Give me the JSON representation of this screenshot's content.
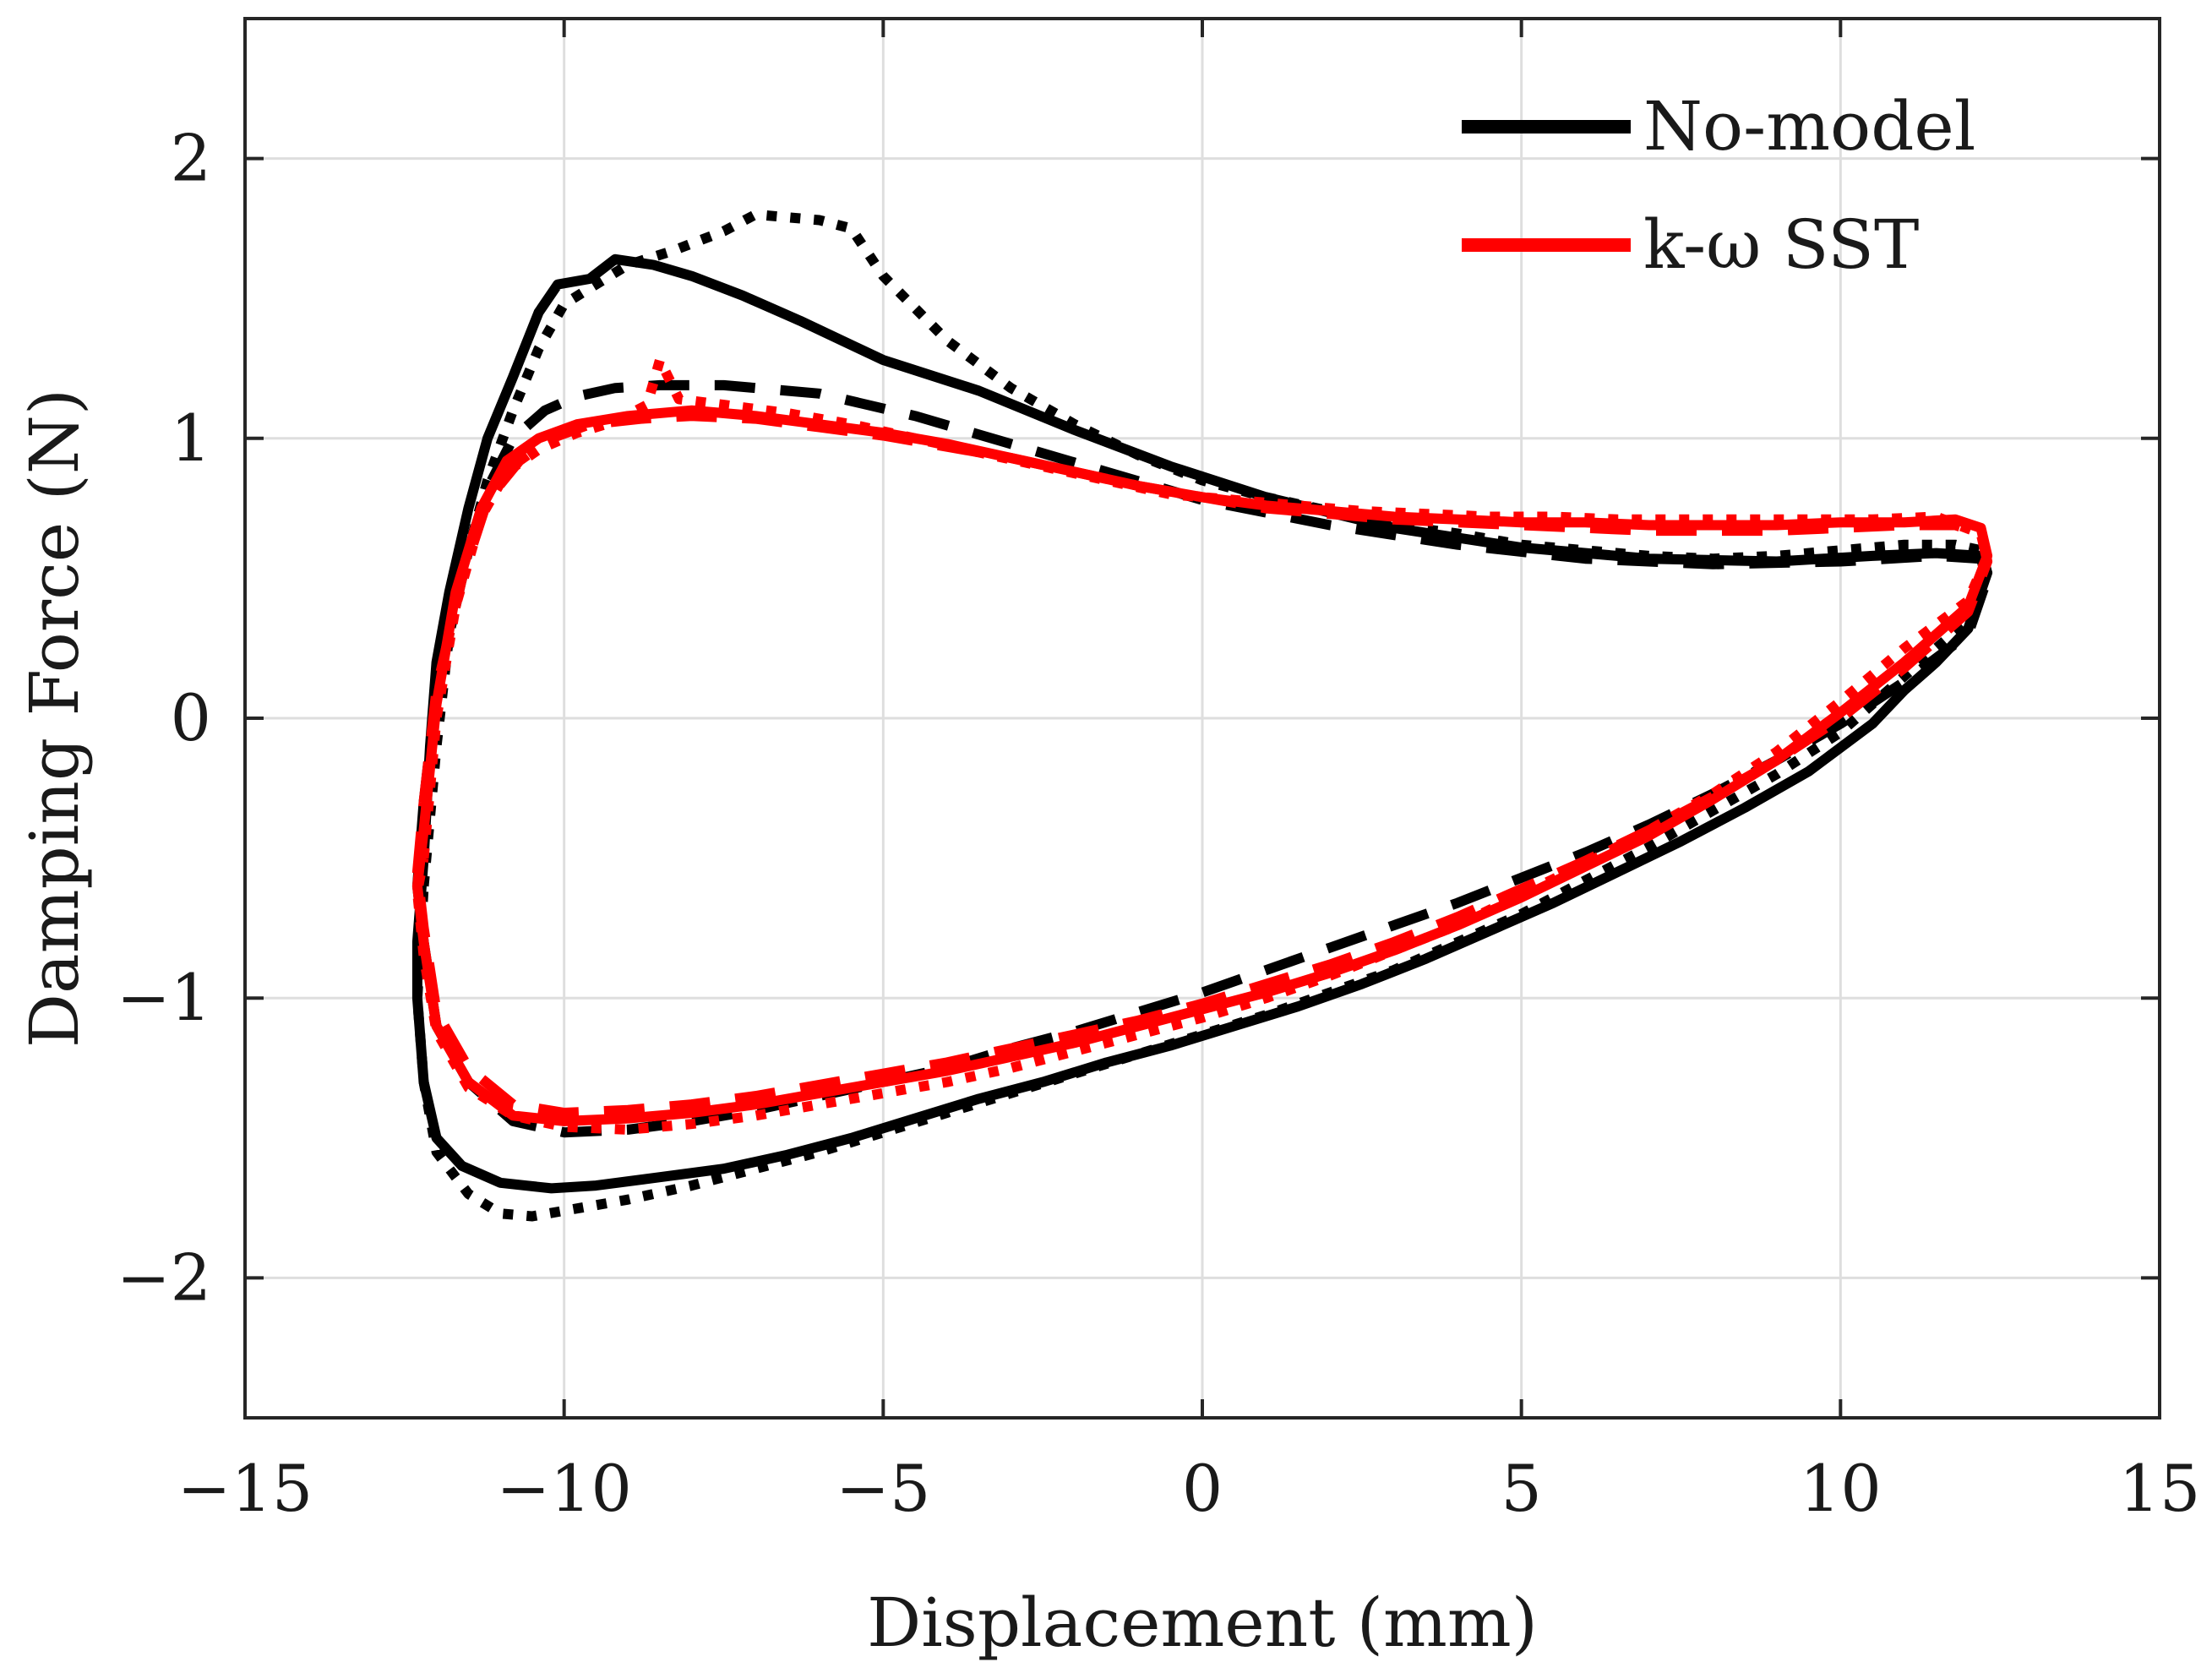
{
  "chart_data": {
    "type": "line",
    "title": "",
    "xlabel": "Displacement (mm)",
    "ylabel": "Damping Force (N)",
    "xlim": [
      -15,
      15
    ],
    "ylim": [
      -2.5,
      2.5
    ],
    "grid": true,
    "legend_position": "top-right",
    "x_ticks": [
      -15,
      -10,
      -5,
      0,
      5,
      10,
      15
    ],
    "y_ticks": [
      -2,
      -1,
      0,
      1,
      2
    ],
    "x_tick_labels": [
      "−15",
      "−10",
      "−5",
      "0",
      "5",
      "10",
      "15"
    ],
    "y_tick_labels": [
      "−2",
      "−1",
      "0",
      "1",
      "2"
    ],
    "legend": [
      {
        "label": "No-model",
        "color": "#000000"
      },
      {
        "label": "k-ω SST",
        "color": "#ff0000"
      }
    ],
    "series": [
      {
        "name": "No-model (solid)",
        "color": "#000000",
        "style": "solid",
        "x": [
          -12.2,
          -12.1,
          -12.0,
          -11.8,
          -11.5,
          -11.2,
          -10.8,
          -10.4,
          -10.1,
          -9.6,
          -9.2,
          -8.6,
          -8.0,
          -7.2,
          -6.3,
          -5.0,
          -3.5,
          -2.0,
          -0.5,
          1.0,
          3.0,
          5.0,
          7.0,
          9.0,
          10.5,
          11.5,
          12.2,
          12.3,
          12.0,
          11.5,
          11.0,
          10.5,
          9.5,
          8.5,
          7.5,
          6.5,
          5.5,
          4.5,
          3.5,
          2.5,
          1.5,
          0.5,
          -0.5,
          -1.5,
          -2.5,
          -3.5,
          -4.5,
          -5.5,
          -6.5,
          -7.5,
          -8.5,
          -9.5,
          -10.2,
          -11.0,
          -11.6,
          -12.0,
          -12.2,
          -12.3,
          -12.3,
          -12.25,
          -12.2
        ],
        "y": [
          -0.5,
          -0.1,
          0.2,
          0.45,
          0.75,
          1.0,
          1.22,
          1.45,
          1.55,
          1.57,
          1.64,
          1.62,
          1.58,
          1.51,
          1.42,
          1.28,
          1.17,
          1.03,
          0.9,
          0.79,
          0.68,
          0.61,
          0.57,
          0.56,
          0.58,
          0.59,
          0.58,
          0.52,
          0.32,
          0.2,
          0.1,
          -0.02,
          -0.19,
          -0.32,
          -0.44,
          -0.55,
          -0.66,
          -0.76,
          -0.86,
          -0.95,
          -1.03,
          -1.1,
          -1.17,
          -1.23,
          -1.3,
          -1.36,
          -1.43,
          -1.5,
          -1.56,
          -1.61,
          -1.64,
          -1.67,
          -1.68,
          -1.66,
          -1.6,
          -1.5,
          -1.3,
          -1.0,
          -0.8,
          -0.65,
          -0.5
        ]
      },
      {
        "name": "No-model (dashed)",
        "color": "#000000",
        "style": "dashed",
        "x": [
          -12.2,
          -12.0,
          -11.6,
          -11.2,
          -10.8,
          -10.3,
          -9.8,
          -9.2,
          -8.5,
          -7.5,
          -6.0,
          -4.5,
          -3.0,
          -1.5,
          0.0,
          2.0,
          4.0,
          6.0,
          8.0,
          10.0,
          11.5,
          12.2,
          12.3,
          12.0,
          11.0,
          10.0,
          9.0,
          8.0,
          7.0,
          6.0,
          5.0,
          4.0,
          3.0,
          2.0,
          1.0,
          0.0,
          -1.0,
          -2.0,
          -3.0,
          -4.0,
          -5.0,
          -6.0,
          -7.0,
          -8.0,
          -9.0,
          -10.0,
          -10.8,
          -11.5,
          -12.0,
          -12.2,
          -12.3,
          -12.2
        ],
        "y": [
          -0.3,
          0.1,
          0.5,
          0.82,
          1.0,
          1.1,
          1.15,
          1.18,
          1.19,
          1.19,
          1.16,
          1.08,
          0.98,
          0.88,
          0.78,
          0.69,
          0.62,
          0.57,
          0.55,
          0.56,
          0.58,
          0.57,
          0.5,
          0.3,
          0.13,
          -0.02,
          -0.15,
          -0.27,
          -0.38,
          -0.48,
          -0.57,
          -0.66,
          -0.74,
          -0.82,
          -0.9,
          -0.98,
          -1.05,
          -1.12,
          -1.18,
          -1.25,
          -1.3,
          -1.35,
          -1.4,
          -1.44,
          -1.47,
          -1.48,
          -1.44,
          -1.3,
          -1.1,
          -0.8,
          -0.6,
          -0.3
        ]
      },
      {
        "name": "No-model (dotted)",
        "color": "#000000",
        "style": "dotted",
        "x": [
          -12.2,
          -12.0,
          -11.8,
          -11.5,
          -11.2,
          -10.8,
          -10.4,
          -10.0,
          -9.5,
          -9.0,
          -8.3,
          -7.5,
          -7.0,
          -6.5,
          -6.0,
          -5.5,
          -5.0,
          -4.0,
          -3.0,
          -2.0,
          -1.0,
          0.0,
          1.0,
          2.0,
          3.0,
          4.0,
          5.0,
          6.0,
          7.0,
          8.0,
          9.0,
          10.0,
          11.0,
          11.8,
          12.2,
          12.3,
          12.0,
          11.5,
          11.0,
          10.5,
          10.0,
          9.0,
          8.0,
          7.0,
          6.0,
          5.0,
          4.0,
          3.0,
          2.0,
          1.0,
          0.0,
          -1.0,
          -2.0,
          -3.0,
          -4.0,
          -5.0,
          -6.0,
          -7.0,
          -8.0,
          -9.0,
          -10.0,
          -10.5,
          -11.0,
          -11.5,
          -12.0,
          -12.2,
          -12.3,
          -12.2
        ],
        "y": [
          -0.6,
          -0.1,
          0.3,
          0.6,
          0.85,
          1.1,
          1.32,
          1.48,
          1.55,
          1.62,
          1.67,
          1.74,
          1.8,
          1.79,
          1.78,
          1.75,
          1.58,
          1.35,
          1.18,
          1.05,
          0.94,
          0.85,
          0.79,
          0.74,
          0.69,
          0.66,
          0.62,
          0.6,
          0.58,
          0.57,
          0.58,
          0.6,
          0.62,
          0.62,
          0.6,
          0.52,
          0.35,
          0.25,
          0.15,
          0.05,
          -0.05,
          -0.2,
          -0.33,
          -0.46,
          -0.58,
          -0.7,
          -0.8,
          -0.9,
          -0.98,
          -1.06,
          -1.13,
          -1.2,
          -1.27,
          -1.34,
          -1.41,
          -1.48,
          -1.55,
          -1.61,
          -1.67,
          -1.72,
          -1.76,
          -1.78,
          -1.77,
          -1.7,
          -1.55,
          -1.3,
          -1.0,
          -0.6
        ]
      },
      {
        "name": "k-ω SST (solid)",
        "color": "#ff0000",
        "style": "solid",
        "x": [
          -12.2,
          -12.0,
          -11.7,
          -11.3,
          -10.9,
          -10.4,
          -9.8,
          -9.0,
          -8.0,
          -7.0,
          -6.0,
          -5.0,
          -4.0,
          -3.0,
          -2.0,
          -1.0,
          0.0,
          1.0,
          2.0,
          3.0,
          4.0,
          5.0,
          6.0,
          7.0,
          8.0,
          9.0,
          10.0,
          11.0,
          11.8,
          12.2,
          12.3,
          12.0,
          11.0,
          10.0,
          9.0,
          8.0,
          7.0,
          6.0,
          5.0,
          4.0,
          3.0,
          2.0,
          1.0,
          0.0,
          -1.0,
          -2.0,
          -3.0,
          -4.0,
          -5.0,
          -6.0,
          -7.0,
          -8.0,
          -9.0,
          -10.0,
          -10.8,
          -11.5,
          -12.0,
          -12.2,
          -12.3,
          -12.2
        ],
        "y": [
          -0.4,
          0.05,
          0.45,
          0.75,
          0.92,
          1.0,
          1.05,
          1.08,
          1.1,
          1.08,
          1.05,
          1.02,
          0.98,
          0.93,
          0.88,
          0.83,
          0.79,
          0.76,
          0.74,
          0.72,
          0.71,
          0.7,
          0.7,
          0.69,
          0.69,
          0.69,
          0.7,
          0.7,
          0.71,
          0.68,
          0.58,
          0.4,
          0.2,
          0.02,
          -0.15,
          -0.29,
          -0.42,
          -0.53,
          -0.64,
          -0.74,
          -0.83,
          -0.91,
          -0.98,
          -1.04,
          -1.1,
          -1.16,
          -1.21,
          -1.26,
          -1.3,
          -1.34,
          -1.38,
          -1.41,
          -1.43,
          -1.44,
          -1.42,
          -1.3,
          -1.1,
          -0.8,
          -0.6,
          -0.4
        ]
      },
      {
        "name": "k-ω SST (dashed)",
        "color": "#ff0000",
        "style": "dashed",
        "x": [
          -12.2,
          -12.0,
          -11.6,
          -11.2,
          -10.7,
          -10.2,
          -9.6,
          -8.8,
          -8.0,
          -7.0,
          -6.0,
          -5.0,
          -4.0,
          -3.0,
          -2.0,
          -1.0,
          0.0,
          1.0,
          2.0,
          3.0,
          4.0,
          5.0,
          6.0,
          7.0,
          8.0,
          9.0,
          10.0,
          11.0,
          11.8,
          12.2,
          12.3,
          12.0,
          11.0,
          10.0,
          9.0,
          8.0,
          7.0,
          6.0,
          5.0,
          4.0,
          3.0,
          2.0,
          1.0,
          0.0,
          -1.0,
          -2.0,
          -3.0,
          -4.0,
          -5.0,
          -6.0,
          -7.0,
          -8.0,
          -9.0,
          -10.0,
          -10.8,
          -11.5,
          -12.0,
          -12.2,
          -12.3,
          -12.2
        ],
        "y": [
          -0.3,
          0.1,
          0.5,
          0.78,
          0.92,
          1.0,
          1.05,
          1.07,
          1.08,
          1.07,
          1.04,
          1.01,
          0.97,
          0.93,
          0.88,
          0.83,
          0.79,
          0.75,
          0.73,
          0.71,
          0.7,
          0.69,
          0.68,
          0.67,
          0.67,
          0.67,
          0.68,
          0.69,
          0.69,
          0.66,
          0.56,
          0.38,
          0.18,
          0.0,
          -0.15,
          -0.28,
          -0.4,
          -0.51,
          -0.61,
          -0.71,
          -0.8,
          -0.88,
          -0.95,
          -1.02,
          -1.08,
          -1.13,
          -1.18,
          -1.23,
          -1.27,
          -1.31,
          -1.35,
          -1.38,
          -1.4,
          -1.41,
          -1.38,
          -1.25,
          -1.05,
          -0.75,
          -0.55,
          -0.3
        ]
      },
      {
        "name": "k-ω SST (dotted)",
        "color": "#ff0000",
        "style": "dotted",
        "x": [
          -12.2,
          -12.0,
          -11.7,
          -11.3,
          -10.9,
          -10.4,
          -9.8,
          -9.2,
          -8.7,
          -8.5,
          -8.2,
          -7.5,
          -6.5,
          -5.5,
          -4.5,
          -3.5,
          -2.5,
          -1.5,
          -0.5,
          0.5,
          1.5,
          2.5,
          3.5,
          4.5,
          5.5,
          6.5,
          7.5,
          8.5,
          9.5,
          10.5,
          11.5,
          12.2,
          12.3,
          12.0,
          11.0,
          10.0,
          9.0,
          8.0,
          7.0,
          6.0,
          5.0,
          4.0,
          3.0,
          2.0,
          1.0,
          0.0,
          -1.0,
          -2.0,
          -3.0,
          -4.0,
          -5.0,
          -6.0,
          -7.0,
          -8.0,
          -9.0,
          -10.0,
          -10.8,
          -11.5,
          -12.0,
          -12.2,
          -12.3,
          -12.2
        ],
        "y": [
          -0.5,
          0.0,
          0.4,
          0.72,
          0.88,
          0.96,
          1.02,
          1.06,
          1.12,
          1.28,
          1.14,
          1.12,
          1.09,
          1.05,
          1.0,
          0.95,
          0.9,
          0.85,
          0.8,
          0.78,
          0.76,
          0.74,
          0.73,
          0.72,
          0.72,
          0.71,
          0.71,
          0.71,
          0.71,
          0.71,
          0.72,
          0.66,
          0.58,
          0.42,
          0.25,
          0.06,
          -0.12,
          -0.27,
          -0.4,
          -0.52,
          -0.63,
          -0.74,
          -0.83,
          -0.92,
          -1.0,
          -1.07,
          -1.13,
          -1.19,
          -1.25,
          -1.3,
          -1.34,
          -1.38,
          -1.42,
          -1.45,
          -1.47,
          -1.46,
          -1.42,
          -1.32,
          -1.12,
          -0.85,
          -0.62,
          -0.5
        ]
      }
    ]
  }
}
